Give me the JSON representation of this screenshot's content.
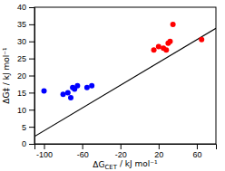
{
  "chart_data": {
    "type": "scatter",
    "xlabel": "ΔGCET / kJ mol⁻¹",
    "ylabel": "ΔG‡ / kJ mol⁻¹",
    "xlim": [
      -110,
      80
    ],
    "ylim": [
      0,
      40
    ],
    "xticks": [
      -100,
      -60,
      -20,
      20,
      60
    ],
    "yticks": [
      0,
      5,
      10,
      15,
      20,
      25,
      30,
      35,
      40
    ],
    "series": [
      {
        "type": "line",
        "color": "#000000",
        "x": [
          -110,
          80
        ],
        "values": [
          2.163,
          33.836
        ]
      },
      {
        "type": "scatter",
        "color": "#0000ff",
        "x": [
          -100,
          -80,
          -75,
          -72,
          -70,
          -68,
          -65,
          -55,
          -50
        ],
        "values": [
          15.5,
          14.5,
          15.0,
          13.5,
          16.5,
          16.0,
          17.0,
          16.5,
          17.0
        ]
      },
      {
        "type": "scatter",
        "color": "#ff0000",
        "x": [
          15,
          20,
          25,
          28,
          30,
          32,
          35,
          65
        ],
        "values": [
          27.5,
          28.5,
          28.0,
          27.5,
          29.5,
          30.0,
          35.0,
          30.5
        ]
      }
    ]
  }
}
